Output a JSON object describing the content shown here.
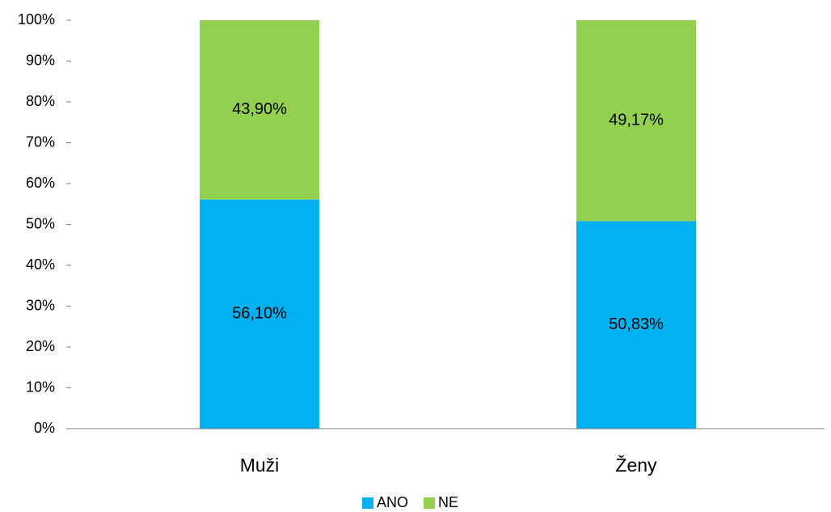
{
  "chart_data": {
    "type": "stacked_bar",
    "categories": [
      "Muži",
      "Ženy"
    ],
    "series": [
      {
        "name": "ANO",
        "color": "#00b0f0",
        "values": [
          56.1,
          50.83
        ],
        "value_labels": [
          "56,10%",
          "50,83%"
        ]
      },
      {
        "name": "NE",
        "color": "#92d050",
        "values": [
          43.9,
          49.17
        ],
        "value_labels": [
          "43,90%",
          "49,17%"
        ]
      }
    ],
    "ylim": [
      0,
      100
    ],
    "yticks": [
      {
        "value": 0,
        "label": "0%"
      },
      {
        "value": 10,
        "label": "10%"
      },
      {
        "value": 20,
        "label": "20%"
      },
      {
        "value": 30,
        "label": "30%"
      },
      {
        "value": 40,
        "label": "40%"
      },
      {
        "value": 50,
        "label": "50%"
      },
      {
        "value": 60,
        "label": "60%"
      },
      {
        "value": 70,
        "label": "70%"
      },
      {
        "value": 80,
        "label": "80%"
      },
      {
        "value": 90,
        "label": "90%"
      },
      {
        "value": 100,
        "label": "100%"
      }
    ],
    "grid": false,
    "legend": "bottom"
  }
}
